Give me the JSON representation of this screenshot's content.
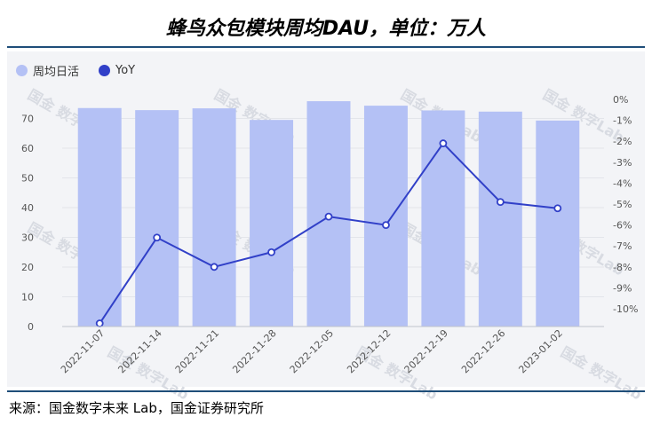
{
  "title": "蜂鸟众包模块周均DAU，单位：万人",
  "source": "来源：国金数字未来 Lab，国金证券研究所",
  "watermark": "国金 数字Lab",
  "colors": {
    "bar": "#b4c1f5",
    "line": "#3140c8",
    "rule": "#1f4e79"
  },
  "chart_data": {
    "type": "bar",
    "categories": [
      "2022-11-07",
      "2022-11-14",
      "2022-11-21",
      "2022-11-28",
      "2022-12-05",
      "2022-12-12",
      "2022-12-19",
      "2022-12-26",
      "2023-01-02"
    ],
    "series": [
      {
        "name": "周均日活",
        "type": "bar",
        "axis": "left",
        "values": [
          73.5,
          72.8,
          73.4,
          69.5,
          75.8,
          74.3,
          72.7,
          72.3,
          69.3
        ]
      },
      {
        "name": "YoY",
        "type": "line",
        "axis": "right",
        "values": [
          -10.7,
          -6.6,
          -8.0,
          -7.3,
          -5.6,
          -6.0,
          -2.1,
          -4.9,
          -5.2
        ]
      }
    ],
    "y_left": {
      "ticks": [
        0,
        10,
        20,
        30,
        40,
        50,
        60,
        70
      ],
      "ylim": [
        0,
        80
      ]
    },
    "y_right": {
      "ticks": [
        "0%",
        "-1%",
        "-2%",
        "-3%",
        "-4%",
        "-5%",
        "-6%",
        "-7%",
        "-8%",
        "-9%",
        "-10%"
      ],
      "ylim": [
        -11,
        0
      ]
    },
    "legend": "top-left"
  }
}
